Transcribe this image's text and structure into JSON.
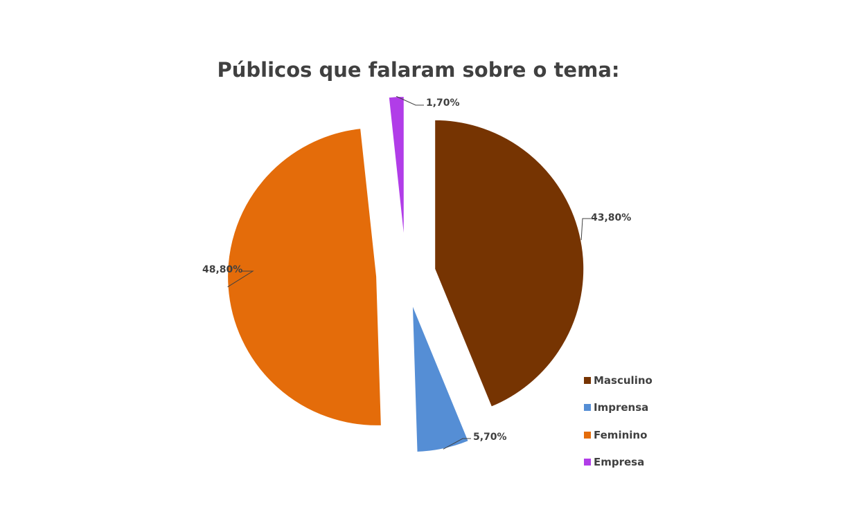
{
  "chart_data": {
    "type": "pie",
    "title": "Públicos que falaram sobre o tema:",
    "categories": [
      "Masculino",
      "Imprensa",
      "Feminino",
      "Empresa"
    ],
    "values": [
      43.8,
      5.7,
      48.8,
      1.7
    ],
    "data_labels": [
      "43,80%",
      "5,70%",
      "48,80%",
      "1,70%"
    ],
    "colors": [
      "#763402",
      "#558ED5",
      "#E46C0A",
      "#B13DE8"
    ],
    "exploded": true,
    "legend_position": "right-bottom"
  }
}
